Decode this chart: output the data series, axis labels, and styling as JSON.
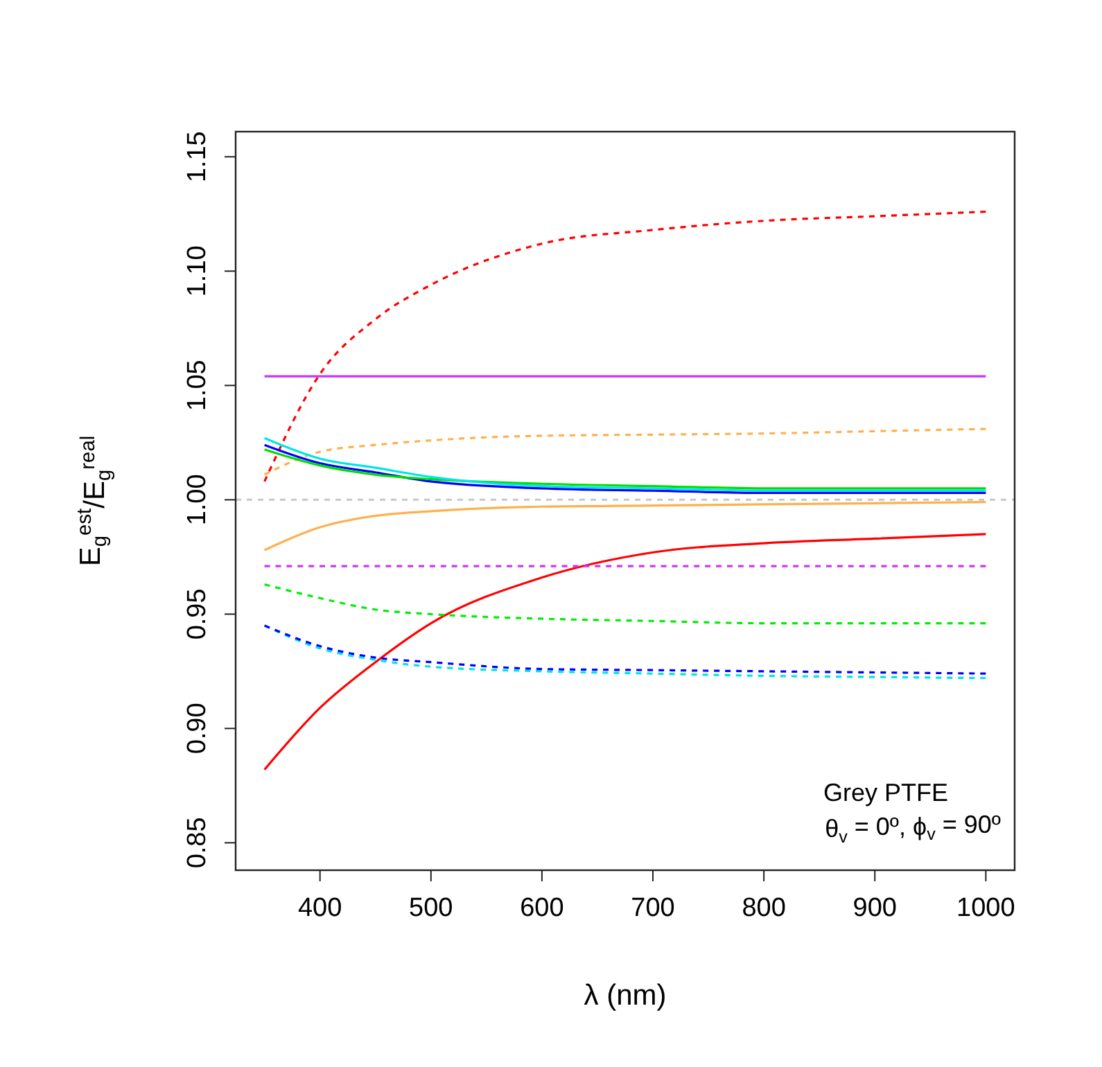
{
  "chart_data": {
    "type": "line",
    "xlabel": "λ (nm)",
    "ylabel": "E$_{g}$$^{est}$/E$_{g}$$^{real}$",
    "x": [
      350,
      400,
      450,
      500,
      600,
      700,
      800,
      900,
      1000
    ],
    "xlim": [
      324,
      1026
    ],
    "ylim": [
      0.838,
      1.161
    ],
    "xticks": [
      400,
      500,
      600,
      700,
      800,
      900,
      1000
    ],
    "yticks": [
      {
        "value": 0.85,
        "label": "0.85"
      },
      {
        "value": 0.9,
        "label": "0.90"
      },
      {
        "value": 0.95,
        "label": "0.95"
      },
      {
        "value": 1.0,
        "label": "1.00"
      },
      {
        "value": 1.05,
        "label": "1.05"
      },
      {
        "value": 1.1,
        "label": "1.10"
      },
      {
        "value": 1.15,
        "label": "1.15"
      }
    ],
    "series": [
      {
        "color": "#ff0000",
        "line_style": "dashed",
        "values": [
          1.008,
          1.055,
          1.079,
          1.094,
          1.112,
          1.118,
          1.122,
          1.124,
          1.126
        ]
      },
      {
        "color": "#cc33ff",
        "line_style": "solid",
        "values": [
          1.054,
          1.054,
          1.054,
          1.054,
          1.054,
          1.054,
          1.054,
          1.054,
          1.054
        ]
      },
      {
        "color": "#ffb04d",
        "line_style": "dashed",
        "values": [
          1.011,
          1.021,
          1.024,
          1.026,
          1.028,
          1.0285,
          1.029,
          1.03,
          1.031
        ]
      },
      {
        "color": "#0000ff",
        "line_style": "solid",
        "values": [
          1.024,
          1.016,
          1.012,
          1.008,
          1.005,
          1.004,
          1.003,
          1.003,
          1.003
        ]
      },
      {
        "color": "#00dd00",
        "line_style": "solid",
        "values": [
          1.022,
          1.015,
          1.011,
          1.009,
          1.007,
          1.006,
          1.005,
          1.005,
          1.005
        ]
      },
      {
        "color": "#00e5e5",
        "line_style": "solid",
        "values": [
          1.027,
          1.018,
          1.014,
          1.01,
          1.006,
          1.005,
          1.004,
          1.004,
          1.004
        ]
      },
      {
        "color": "#ffb04d",
        "line_style": "solid",
        "values": [
          0.978,
          0.988,
          0.993,
          0.995,
          0.997,
          0.9975,
          0.998,
          0.9985,
          0.999
        ]
      },
      {
        "color": "#ff0000",
        "line_style": "solid",
        "values": [
          0.882,
          0.909,
          0.929,
          0.946,
          0.966,
          0.977,
          0.981,
          0.983,
          0.985
        ]
      },
      {
        "color": "#cc33ff",
        "line_style": "dashed",
        "values": [
          0.971,
          0.971,
          0.971,
          0.971,
          0.971,
          0.971,
          0.971,
          0.971,
          0.971
        ]
      },
      {
        "color": "#00ee00",
        "line_style": "dashed",
        "values": [
          0.963,
          0.957,
          0.952,
          0.95,
          0.948,
          0.947,
          0.946,
          0.946,
          0.946
        ]
      },
      {
        "color": "#00e5e5",
        "line_style": "dashed",
        "values": [
          0.945,
          0.935,
          0.93,
          0.927,
          0.925,
          0.924,
          0.923,
          0.9225,
          0.922
        ]
      },
      {
        "color": "#0000ff",
        "line_style": "dashed",
        "values": [
          0.945,
          0.936,
          0.931,
          0.929,
          0.926,
          0.9255,
          0.925,
          0.9245,
          0.924
        ]
      }
    ],
    "ref_lines": [
      {
        "axis": "y",
        "value": 1.0,
        "color": "#c8c8c8",
        "line_style": "dashed"
      }
    ],
    "annotations": [
      "Grey PTFE",
      "θ$_{v}$ = 0º, ϕ$_{v}$ = 90º"
    ],
    "grid": false
  }
}
